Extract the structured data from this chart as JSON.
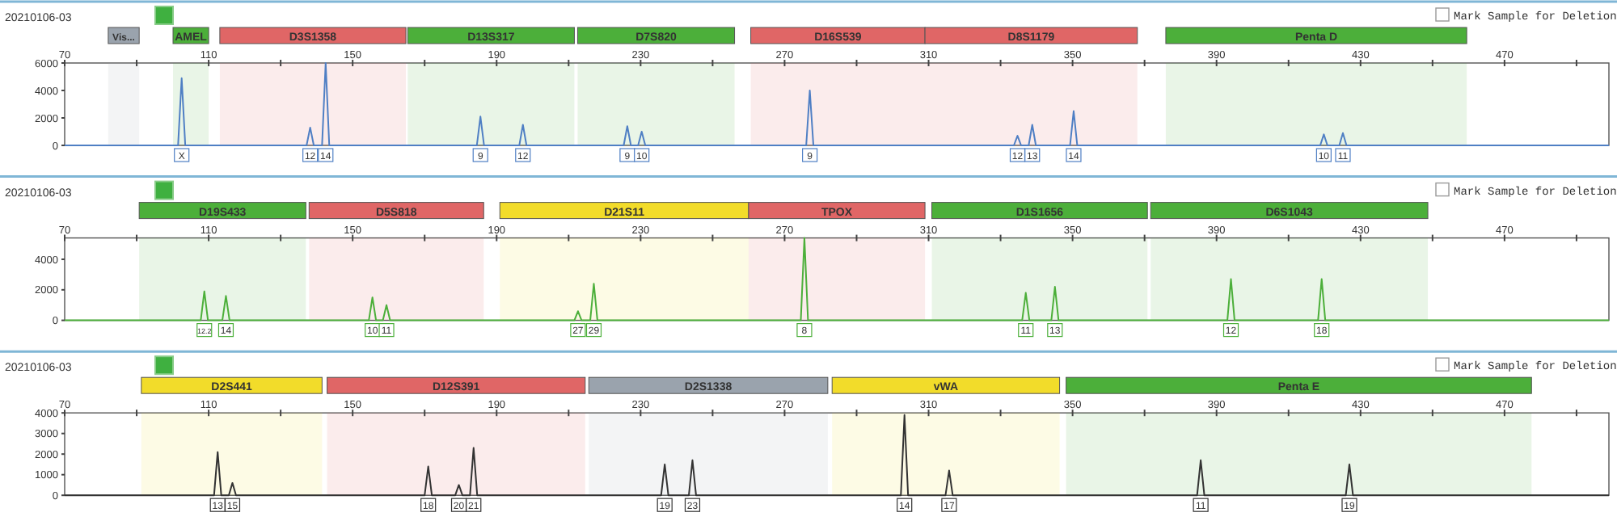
{
  "chart_data": [
    {
      "type": "line",
      "title": "20210106-03",
      "xlim": [
        70,
        499
      ],
      "xticks": [
        70,
        {
          "value": 90,
          "label": null
        },
        110,
        {
          "value": 130,
          "label": null
        },
        150,
        {
          "value": 170,
          "label": null
        },
        190,
        {
          "value": 210,
          "label": null
        },
        230,
        {
          "value": 250,
          "label": null
        },
        270,
        {
          "value": 290,
          "label": null
        },
        310,
        {
          "value": 330,
          "label": null
        },
        350,
        {
          "value": 370,
          "label": null
        },
        390,
        {
          "value": 410,
          "label": null
        },
        430,
        {
          "value": 450,
          "label": null
        },
        470,
        {
          "value": 490,
          "label": null
        }
      ],
      "ylim": [
        0,
        6000
      ],
      "yticks": [
        0,
        2000,
        4000,
        6000
      ],
      "series": [
        {
          "color": "#4f7fc4",
          "x": [
            70,
            101.5,
            102.5,
            103.5,
            137.2,
            138.2,
            139.2,
            141.5,
            142.5,
            143.5,
            184.5,
            185.5,
            186.5,
            196.3,
            197.3,
            198.3,
            225.3,
            226.3,
            227.3,
            229.3,
            230.3,
            231.3,
            276,
            277,
            278,
            333.7,
            334.7,
            335.7,
            337.8,
            338.8,
            339.8,
            349.3,
            350.3,
            351.3,
            418.8,
            419.8,
            420.8,
            424.1,
            425.1,
            426.1,
            499
          ],
          "values": [
            0,
            0,
            4900,
            0,
            0,
            1300,
            0,
            0,
            6000,
            0,
            0,
            2100,
            0,
            0,
            1500,
            0,
            0,
            1400,
            0,
            0,
            1000,
            0,
            0,
            4000,
            0,
            0,
            700,
            0,
            0,
            1500,
            0,
            0,
            2500,
            0,
            0,
            800,
            0,
            0,
            900,
            0,
            0
          ]
        }
      ],
      "bands": [
        {
          "axis": "x",
          "from": 82.1,
          "to": 90.7,
          "label": "Vis...",
          "color": "#9aa3ad"
        },
        {
          "axis": "x",
          "from": 100.1,
          "to": 110,
          "label": "AMEL",
          "color": "#4caf3a"
        },
        {
          "axis": "x",
          "from": 113.1,
          "to": 164.8,
          "label": "D3S1358",
          "color": "#e06666"
        },
        {
          "axis": "x",
          "from": 165.3,
          "to": 211.6,
          "label": "D13S317",
          "color": "#4caf3a"
        },
        {
          "axis": "x",
          "from": 212.5,
          "to": 256.1,
          "label": "D7S820",
          "color": "#4caf3a"
        },
        {
          "axis": "x",
          "from": 260.6,
          "to": 309,
          "label": "D16S539",
          "color": "#e06666"
        },
        {
          "axis": "x",
          "from": 309,
          "to": 368,
          "label": "D8S1179",
          "color": "#e06666"
        },
        {
          "axis": "x",
          "from": 375.9,
          "to": 459.5,
          "label": "Penta D",
          "color": "#4caf3a"
        }
      ],
      "annotations": [
        "Mark Sample for Deletion",
        {
          "text": "X",
          "x": 102.5,
          "y": 0
        },
        {
          "text": "12",
          "x": 138.2,
          "y": 0
        },
        {
          "text": "14",
          "x": 142.5,
          "y": 0
        },
        {
          "text": "9",
          "x": 185.5,
          "y": 0
        },
        {
          "text": "12",
          "x": 197.3,
          "y": 0
        },
        {
          "text": "9",
          "x": 226.3,
          "y": 0
        },
        {
          "text": "10",
          "x": 230.3,
          "y": 0
        },
        {
          "text": "9",
          "x": 277,
          "y": 0
        },
        {
          "text": "12",
          "x": 334.7,
          "y": 0
        },
        {
          "text": "13",
          "x": 338.8,
          "y": 0
        },
        {
          "text": "14",
          "x": 350.3,
          "y": 0
        },
        {
          "text": "10",
          "x": 419.8,
          "y": 0
        },
        {
          "text": "11",
          "x": 425.1,
          "y": 0
        }
      ]
    },
    {
      "type": "line",
      "title": "20210106-03",
      "xlim": [
        70,
        499
      ],
      "xticks": [
        70,
        {
          "value": 90,
          "label": null
        },
        110,
        {
          "value": 130,
          "label": null
        },
        150,
        {
          "value": 170,
          "label": null
        },
        190,
        {
          "value": 210,
          "label": null
        },
        230,
        {
          "value": 250,
          "label": null
        },
        270,
        {
          "value": 290,
          "label": null
        },
        310,
        {
          "value": 330,
          "label": null
        },
        350,
        {
          "value": 370,
          "label": null
        },
        390,
        {
          "value": 410,
          "label": null
        },
        430,
        {
          "value": 450,
          "label": null
        },
        470,
        {
          "value": 490,
          "label": null
        }
      ],
      "ylim": [
        0,
        5400
      ],
      "yticks": [
        0,
        2000,
        4000
      ],
      "series": [
        {
          "color": "#4caf3a",
          "x": [
            70,
            107.8,
            108.8,
            109.8,
            113.8,
            114.8,
            115.8,
            154.5,
            155.5,
            156.5,
            158.4,
            159.4,
            160.4,
            211.6,
            212.6,
            213.6,
            216,
            217,
            218,
            274.5,
            275.5,
            276.5,
            336,
            337,
            338,
            344.1,
            345.1,
            346.1,
            393,
            394,
            395,
            418.2,
            419.2,
            420.2,
            499
          ],
          "values": [
            0,
            0,
            1900,
            0,
            0,
            1600,
            0,
            0,
            1500,
            0,
            0,
            1000,
            0,
            0,
            600,
            0,
            0,
            2400,
            0,
            0,
            5400,
            0,
            0,
            1800,
            0,
            0,
            2200,
            0,
            0,
            2700,
            0,
            0,
            2700,
            0,
            0
          ]
        }
      ],
      "bands": [
        {
          "axis": "x",
          "from": 90.7,
          "to": 137,
          "label": "D19S433",
          "color": "#4caf3a"
        },
        {
          "axis": "x",
          "from": 137.9,
          "to": 186.4,
          "label": "D5S818",
          "color": "#e06666"
        },
        {
          "axis": "x",
          "from": 190.9,
          "to": 260,
          "label": "D21S11",
          "color": "#f2dc2a"
        },
        {
          "axis": "x",
          "from": 260,
          "to": 309,
          "label": "TPOX",
          "color": "#e06666"
        },
        {
          "axis": "x",
          "from": 310.9,
          "to": 370.8,
          "label": "D1S1656",
          "color": "#4caf3a"
        },
        {
          "axis": "x",
          "from": 371.7,
          "to": 448.7,
          "label": "D6S1043",
          "color": "#4caf3a"
        }
      ],
      "annotations": [
        "Mark Sample for Deletion",
        {
          "text": "12.2",
          "x": 108.8,
          "y": 0
        },
        {
          "text": "14",
          "x": 114.8,
          "y": 0
        },
        {
          "text": "10",
          "x": 155.5,
          "y": 0
        },
        {
          "text": "11",
          "x": 159.4,
          "y": 0
        },
        {
          "text": "27",
          "x": 212.6,
          "y": 0
        },
        {
          "text": "29",
          "x": 217,
          "y": 0
        },
        {
          "text": "8",
          "x": 275.5,
          "y": 0
        },
        {
          "text": "11",
          "x": 337,
          "y": 0
        },
        {
          "text": "13",
          "x": 345.1,
          "y": 0
        },
        {
          "text": "12",
          "x": 394,
          "y": 0
        },
        {
          "text": "18",
          "x": 419.2,
          "y": 0
        }
      ]
    },
    {
      "type": "line",
      "title": "20210106-03",
      "xlim": [
        70,
        499
      ],
      "xticks": [
        70,
        {
          "value": 90,
          "label": null
        },
        110,
        {
          "value": 130,
          "label": null
        },
        150,
        {
          "value": 170,
          "label": null
        },
        190,
        {
          "value": 210,
          "label": null
        },
        230,
        {
          "value": 250,
          "label": null
        },
        270,
        {
          "value": 290,
          "label": null
        },
        310,
        {
          "value": 330,
          "label": null
        },
        350,
        {
          "value": 370,
          "label": null
        },
        390,
        {
          "value": 410,
          "label": null
        },
        430,
        {
          "value": 450,
          "label": null
        },
        470,
        {
          "value": 490,
          "label": null
        }
      ],
      "ylim": [
        0,
        4000
      ],
      "yticks": [
        0,
        1000,
        2000,
        3000,
        4000
      ],
      "series": [
        {
          "color": "#333333",
          "x": [
            70,
            111.5,
            112.5,
            113.5,
            115.6,
            116.6,
            117.6,
            170,
            171,
            172,
            178.5,
            179.5,
            180.5,
            182.6,
            183.6,
            184.6,
            235.7,
            236.7,
            237.7,
            243.4,
            244.4,
            245.4,
            302.3,
            303.3,
            304.3,
            314.7,
            315.7,
            316.7,
            384.6,
            385.6,
            386.6,
            425.9,
            426.9,
            427.9,
            499
          ],
          "values": [
            0,
            0,
            2100,
            0,
            0,
            600,
            0,
            0,
            1400,
            0,
            0,
            500,
            0,
            0,
            2300,
            0,
            0,
            1500,
            0,
            0,
            1700,
            0,
            0,
            3900,
            0,
            0,
            1200,
            0,
            0,
            1700,
            0,
            0,
            1500,
            0,
            0
          ]
        }
      ],
      "bands": [
        {
          "axis": "x",
          "from": 91.3,
          "to": 141.5,
          "label": "D2S441",
          "color": "#f2dc2a"
        },
        {
          "axis": "x",
          "from": 142.9,
          "to": 214.6,
          "label": "D12S391",
          "color": "#e06666"
        },
        {
          "axis": "x",
          "from": 215.6,
          "to": 282,
          "label": "D2S1338",
          "color": "#9aa3ad"
        },
        {
          "axis": "x",
          "from": 283.2,
          "to": 346.4,
          "label": "vWA",
          "color": "#f2dc2a"
        },
        {
          "axis": "x",
          "from": 348.2,
          "to": 477.5,
          "label": "Penta E",
          "color": "#4caf3a"
        }
      ],
      "annotations": [
        "Mark Sample for Deletion",
        {
          "text": "13",
          "x": 112.5,
          "y": 0
        },
        {
          "text": "15",
          "x": 116.6,
          "y": 0
        },
        {
          "text": "18",
          "x": 171,
          "y": 0
        },
        {
          "text": "20",
          "x": 179.5,
          "y": 0
        },
        {
          "text": "21",
          "x": 183.6,
          "y": 0
        },
        {
          "text": "19",
          "x": 236.7,
          "y": 0
        },
        {
          "text": "23",
          "x": 244.4,
          "y": 0
        },
        {
          "text": "14",
          "x": 303.3,
          "y": 0
        },
        {
          "text": "17",
          "x": 315.7,
          "y": 0
        },
        {
          "text": "11",
          "x": 385.6,
          "y": 0
        },
        {
          "text": "19",
          "x": 426.9,
          "y": 0
        }
      ]
    }
  ]
}
